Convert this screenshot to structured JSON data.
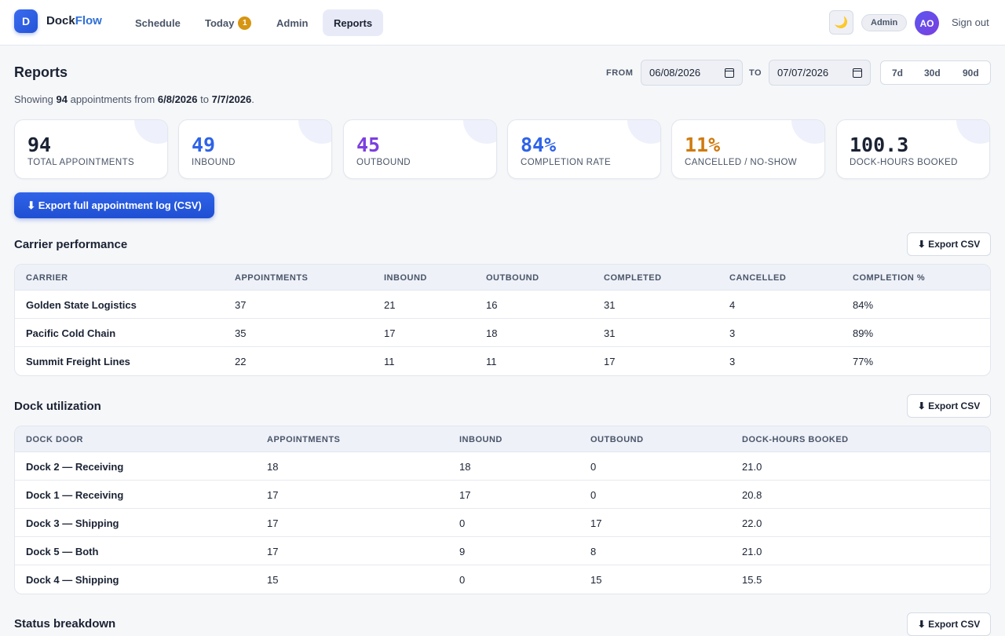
{
  "nav": {
    "logo_letter": "D",
    "brand_a": "Dock",
    "brand_b": "Flow",
    "items": [
      {
        "label": "Schedule"
      },
      {
        "label": "Today",
        "badge": "1"
      },
      {
        "label": "Admin"
      },
      {
        "label": "Reports",
        "active": true
      }
    ],
    "theme_icon": "🌙",
    "role": "Admin",
    "avatar": "AO",
    "signout": "Sign out"
  },
  "reports": {
    "title": "Reports",
    "summary_prefix": "Showing",
    "count": "94",
    "summary_mid": "appointments from",
    "from_short": "6/8/2026",
    "to_word": "to",
    "to_short": "7/7/2026",
    "period": ".",
    "from_label": "FROM",
    "from_value": "06/08/2026",
    "to_label": "TO",
    "to_value": "07/07/2026",
    "ranges": [
      "7d",
      "30d",
      "90d"
    ]
  },
  "stats": [
    {
      "value": "94",
      "label": "TOTAL APPOINTMENTS",
      "color": "#1a2233"
    },
    {
      "value": "49",
      "label": "INBOUND",
      "color": "#2f63e8"
    },
    {
      "value": "45",
      "label": "OUTBOUND",
      "color": "#7b3fe0"
    },
    {
      "value": "84%",
      "label": "COMPLETION RATE",
      "color": "#2f63e8"
    },
    {
      "value": "11%",
      "label": "CANCELLED / NO-SHOW",
      "color": "#cf7b0f"
    },
    {
      "value": "100.3",
      "label": "DOCK-HOURS BOOKED",
      "color": "#1a2233"
    }
  ],
  "export_main": "⬇ Export full appointment log (CSV)",
  "export_csv": "⬇ Export CSV",
  "carrier": {
    "title": "Carrier performance",
    "headers": [
      "CARRIER",
      "APPOINTMENTS",
      "INBOUND",
      "OUTBOUND",
      "COMPLETED",
      "CANCELLED",
      "COMPLETION %"
    ],
    "rows": [
      [
        "Golden State Logistics",
        "37",
        "21",
        "16",
        "31",
        "4",
        "84%"
      ],
      [
        "Pacific Cold Chain",
        "35",
        "17",
        "18",
        "31",
        "3",
        "89%"
      ],
      [
        "Summit Freight Lines",
        "22",
        "11",
        "11",
        "17",
        "3",
        "77%"
      ]
    ]
  },
  "dock": {
    "title": "Dock utilization",
    "headers": [
      "DOCK DOOR",
      "APPOINTMENTS",
      "INBOUND",
      "OUTBOUND",
      "DOCK-HOURS BOOKED"
    ],
    "rows": [
      [
        "Dock 2 — Receiving",
        "18",
        "18",
        "0",
        "21.0"
      ],
      [
        "Dock 1 — Receiving",
        "17",
        "17",
        "0",
        "20.8"
      ],
      [
        "Dock 3 — Shipping",
        "17",
        "0",
        "17",
        "22.0"
      ],
      [
        "Dock 5 — Both",
        "17",
        "9",
        "8",
        "21.0"
      ],
      [
        "Dock 4 — Shipping",
        "15",
        "0",
        "15",
        "15.5"
      ]
    ]
  },
  "status": {
    "title": "Status breakdown"
  }
}
